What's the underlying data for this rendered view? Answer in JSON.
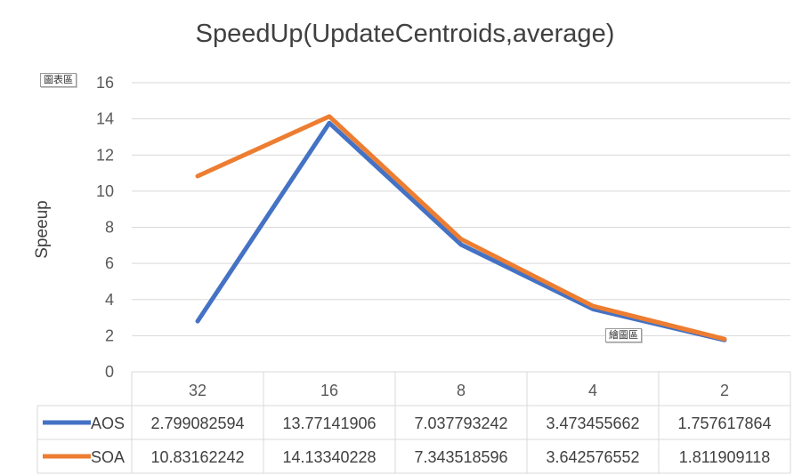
{
  "chart_data": {
    "type": "line",
    "title": "SpeedUp(UpdateCentroids,average)",
    "ylabel": "Speeup",
    "xlabel": "",
    "ylim": [
      0,
      16
    ],
    "yticks": [
      "0",
      "2",
      "4",
      "6",
      "8",
      "10",
      "12",
      "14",
      "16"
    ],
    "categories": [
      "32",
      "16",
      "8",
      "4",
      "2"
    ],
    "grid": true,
    "legend": "data-table",
    "series": [
      {
        "name": "AOS",
        "color": "#4472C4",
        "values": [
          2.799082594,
          13.77141906,
          7.037793242,
          3.473455662,
          1.757617864
        ],
        "labels": [
          "2.799082594",
          "13.77141906",
          "7.037793242",
          "3.473455662",
          "1.757617864"
        ]
      },
      {
        "name": "SOA",
        "color": "#ED7D31",
        "values": [
          10.83162242,
          14.13340228,
          7.343518596,
          3.642576552,
          1.811909118
        ],
        "labels": [
          "10.83162242",
          "14.13340228",
          "7.343518596",
          "3.642576552",
          "1.811909118"
        ]
      }
    ]
  },
  "tags": {
    "chart_area": "圖表區",
    "plot_area": "繪圖區"
  }
}
